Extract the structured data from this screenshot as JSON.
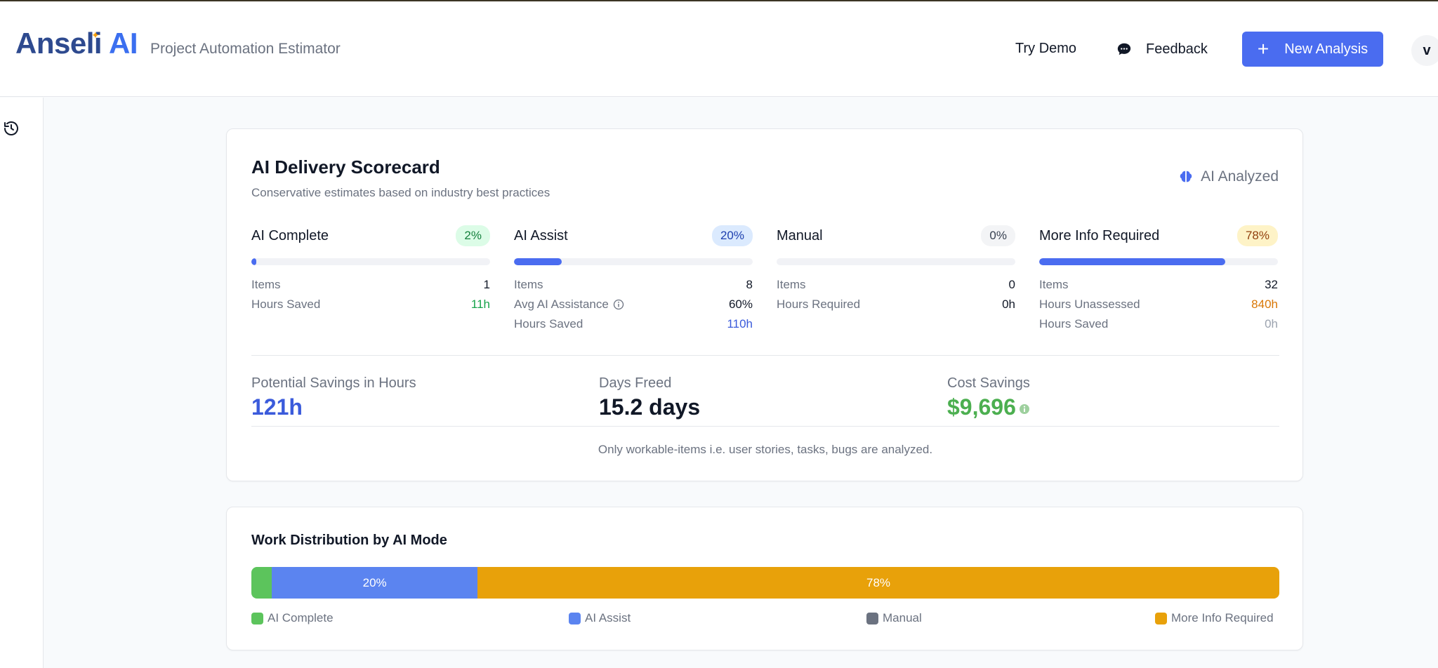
{
  "app": {
    "brand_main": "Anseli",
    "brand_ai": "AI",
    "subtitle": "Project Automation Estimator"
  },
  "header": {
    "try_demo": "Try Demo",
    "feedback": "Feedback",
    "new_analysis": "New Analysis",
    "avatar_initial": "v"
  },
  "scorecard": {
    "title": "AI Delivery Scorecard",
    "subtitle": "Conservative estimates based on industry best practices",
    "status": "AI Analyzed",
    "modes": [
      {
        "name": "AI Complete",
        "badge": "2%",
        "progress": 2,
        "badge_bg": "#dcfce7",
        "badge_fg": "#15803d",
        "rows": [
          {
            "label": "Items",
            "value": "1",
            "color": "#111827"
          },
          {
            "label": "Hours Saved",
            "value": "11h",
            "color": "#16a34a"
          }
        ]
      },
      {
        "name": "AI Assist",
        "badge": "20%",
        "progress": 20,
        "badge_bg": "#dbeafe",
        "badge_fg": "#1e40af",
        "rows": [
          {
            "label": "Items",
            "value": "8",
            "color": "#111827"
          },
          {
            "label": "Avg AI Assistance",
            "value": "60%",
            "color": "#111827",
            "info": true
          },
          {
            "label": "Hours Saved",
            "value": "110h",
            "color": "#3b5bdb"
          }
        ]
      },
      {
        "name": "Manual",
        "badge": "0%",
        "progress": 0,
        "badge_bg": "#f3f4f6",
        "badge_fg": "#374151",
        "rows": [
          {
            "label": "Items",
            "value": "0",
            "color": "#111827"
          },
          {
            "label": "Hours Required",
            "value": "0h",
            "color": "#111827"
          }
        ]
      },
      {
        "name": "More Info Required",
        "badge": "78%",
        "progress": 78,
        "badge_bg": "#fef3c7",
        "badge_fg": "#92400e",
        "rows": [
          {
            "label": "Items",
            "value": "32",
            "color": "#111827"
          },
          {
            "label": "Hours Unassessed",
            "value": "840h",
            "color": "#d97706"
          },
          {
            "label": "Hours Saved",
            "value": "0h",
            "color": "#9ca3af"
          }
        ]
      }
    ],
    "summary": [
      {
        "label": "Potential Savings in Hours",
        "value": "121h",
        "color": "#3b5bdb"
      },
      {
        "label": "Days Freed",
        "value": "15.2 days",
        "color": "#111827"
      },
      {
        "label": "Cost Savings",
        "value": "$9,696",
        "color": "#4caf50"
      }
    ],
    "note": "Only workable-items i.e. user stories, tasks, bugs are analyzed."
  },
  "distribution": {
    "title": "Work Distribution by AI Mode",
    "segments": [
      {
        "name": "AI Complete",
        "percent": 2,
        "label": "",
        "color": "#5cc45c"
      },
      {
        "name": "AI Assist",
        "percent": 20,
        "label": "20%",
        "color": "#5b84f0"
      },
      {
        "name": "Manual",
        "percent": 0,
        "label": "",
        "color": "#6b7280"
      },
      {
        "name": "More Info Required",
        "percent": 78,
        "label": "78%",
        "color": "#e8a10a"
      }
    ]
  },
  "colors": {
    "accent": "#4a6cf0",
    "brand": "#2e4a8f"
  }
}
